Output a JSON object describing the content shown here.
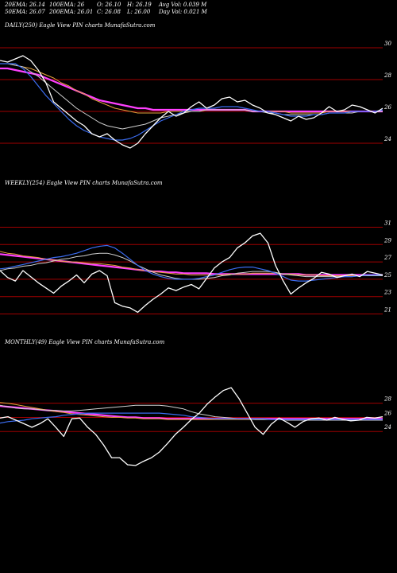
{
  "header": {
    "row1": [
      "20EMA: 26.14",
      "100EMA: 26",
      "O: 26.10",
      "H: 26.19",
      "Avg Vol: 0.039 M"
    ],
    "row2": [
      "50EMA: 26.07",
      "200EMA: 26.01",
      "C: 26.08",
      "L: 26.00",
      "Day Vol: 0.021 M"
    ]
  },
  "colors": {
    "price": "#ffffff",
    "ema20": "#3b6cf0",
    "ema50": "#cfcfcf",
    "ema100": "#e6a33c",
    "ema200": "#ff40ff",
    "hline": "#a00000"
  },
  "chart_data": [
    {
      "type": "line",
      "title": "DAILY(250) Eagle View PIN charts MunafaSutra.com",
      "ylim": [
        23,
        31
      ],
      "yticks": [
        "30",
        "28",
        "26",
        "24"
      ],
      "tickValues": [
        30,
        28,
        26,
        24
      ],
      "series": [
        {
          "key": "price",
          "values": [
            29.2,
            29.1,
            29.3,
            29.5,
            29.2,
            28.6,
            27.8,
            26.6,
            26.2,
            25.8,
            25.4,
            25.1,
            24.6,
            24.4,
            24.6,
            24.2,
            23.9,
            23.7,
            24.0,
            24.6,
            25.1,
            25.6,
            26.0,
            25.7,
            25.9,
            26.3,
            26.6,
            26.2,
            26.4,
            26.8,
            26.9,
            26.6,
            26.7,
            26.4,
            26.2,
            25.9,
            25.8,
            25.6,
            25.4,
            25.7,
            25.5,
            25.6,
            25.9,
            26.3,
            26.0,
            26.1,
            26.4,
            26.3,
            26.1,
            25.9,
            26.2
          ]
        },
        {
          "key": "ema20",
          "values": [
            29.0,
            29.0,
            29.0,
            28.7,
            28.2,
            27.6,
            27.0,
            26.5,
            26.0,
            25.5,
            25.1,
            24.8,
            24.6,
            24.4,
            24.3,
            24.2,
            24.2,
            24.3,
            24.5,
            24.8,
            25.1,
            25.4,
            25.6,
            25.8,
            26.0,
            26.1,
            26.2,
            26.2,
            26.2,
            26.3,
            26.3,
            26.3,
            26.2,
            26.1,
            26.0,
            26.0,
            25.9,
            25.8,
            25.7,
            25.7,
            25.7,
            25.8,
            25.8,
            25.9,
            25.9,
            25.9,
            26.0,
            26.0,
            26.0,
            26.0,
            26.1
          ]
        },
        {
          "key": "ema50",
          "values": [
            29.0,
            29.0,
            28.9,
            28.8,
            28.5,
            28.2,
            27.8,
            27.4,
            27.0,
            26.6,
            26.2,
            25.9,
            25.6,
            25.3,
            25.1,
            25.0,
            24.9,
            25.0,
            25.1,
            25.2,
            25.4,
            25.6,
            25.7,
            25.8,
            25.9,
            26.0,
            26.0,
            26.1,
            26.1,
            26.1,
            26.1,
            26.1,
            26.1,
            26.0,
            26.0,
            25.9,
            25.9,
            25.8,
            25.8,
            25.8,
            25.8,
            25.8,
            25.8,
            25.9,
            25.9,
            25.9,
            25.9,
            26.0,
            26.0,
            26.0,
            26.0
          ]
        },
        {
          "key": "ema100",
          "values": [
            29.0,
            29.0,
            28.9,
            28.8,
            28.7,
            28.5,
            28.3,
            28.1,
            27.8,
            27.6,
            27.3,
            27.1,
            26.8,
            26.6,
            26.4,
            26.2,
            26.1,
            26.0,
            25.9,
            25.9,
            25.9,
            25.9,
            26.0,
            26.0,
            26.0,
            26.0,
            26.0,
            26.1,
            26.1,
            26.1,
            26.1,
            26.1,
            26.1,
            26.0,
            26.0,
            26.0,
            26.0,
            26.0,
            25.9,
            25.9,
            25.9,
            25.9,
            25.9,
            26.0,
            26.0,
            26.0,
            26.0,
            26.0,
            26.0,
            26.0,
            26.0
          ]
        },
        {
          "key": "ema200",
          "values": [
            28.7,
            28.7,
            28.6,
            28.5,
            28.4,
            28.3,
            28.1,
            27.9,
            27.7,
            27.5,
            27.3,
            27.1,
            26.9,
            26.7,
            26.6,
            26.5,
            26.4,
            26.3,
            26.2,
            26.2,
            26.1,
            26.1,
            26.1,
            26.1,
            26.1,
            26.1,
            26.1,
            26.1,
            26.1,
            26.1,
            26.1,
            26.1,
            26.1,
            26.0,
            26.0,
            26.0,
            26.0,
            26.0,
            26.0,
            26.0,
            26.0,
            26.0,
            26.0,
            26.0,
            26.0,
            26.0,
            26.0,
            26.0,
            26.0,
            26.0,
            26.0
          ]
        }
      ]
    },
    {
      "type": "line",
      "title": "WEEKLY(254) Eagle View PIN charts MunafaSutra.com",
      "ylim": [
        20.5,
        31.5
      ],
      "yticks": [
        "31",
        "29",
        "27",
        "25",
        "23",
        "21"
      ],
      "tickValues": [
        31,
        29,
        27,
        25,
        23,
        21
      ],
      "series": [
        {
          "key": "price",
          "values": [
            26.0,
            25.2,
            24.8,
            26.0,
            25.3,
            24.6,
            24.0,
            23.4,
            24.2,
            24.8,
            25.5,
            24.6,
            25.6,
            26.0,
            25.4,
            22.3,
            21.9,
            21.7,
            21.2,
            22.0,
            22.7,
            23.3,
            24.0,
            23.7,
            24.1,
            24.4,
            23.9,
            25.1,
            26.3,
            27.0,
            27.5,
            28.6,
            29.2,
            30.0,
            30.3,
            29.2,
            26.6,
            24.8,
            23.3,
            24.0,
            24.6,
            25.1,
            25.8,
            25.6,
            25.2,
            25.4,
            25.6,
            25.3,
            25.9,
            25.7,
            25.5
          ]
        },
        {
          "key": "ema20",
          "values": [
            26.2,
            26.3,
            26.5,
            26.7,
            26.9,
            27.1,
            27.3,
            27.5,
            27.6,
            27.8,
            28.0,
            28.3,
            28.6,
            28.8,
            28.9,
            28.6,
            28.0,
            27.3,
            26.6,
            26.0,
            25.6,
            25.3,
            25.1,
            25.0,
            25.0,
            25.0,
            25.1,
            25.3,
            25.5,
            25.8,
            26.1,
            26.3,
            26.4,
            26.4,
            26.2,
            26.0,
            25.7,
            25.3,
            24.9,
            24.8,
            24.8,
            24.9,
            25.0,
            25.1,
            25.2,
            25.3,
            25.3,
            25.4,
            25.5,
            25.5,
            25.5
          ]
        },
        {
          "key": "ema50",
          "values": [
            26.0,
            26.2,
            26.3,
            26.5,
            26.6,
            26.8,
            26.9,
            27.1,
            27.3,
            27.4,
            27.6,
            27.7,
            27.9,
            28.0,
            28.0,
            27.8,
            27.5,
            27.1,
            26.6,
            26.2,
            25.8,
            25.5,
            25.3,
            25.1,
            25.0,
            25.0,
            25.0,
            25.1,
            25.2,
            25.4,
            25.5,
            25.7,
            25.8,
            25.9,
            25.9,
            25.9,
            25.8,
            25.6,
            25.5,
            25.4,
            25.3,
            25.3,
            25.3,
            25.3,
            25.3,
            25.3,
            25.3,
            25.4,
            25.4,
            25.4,
            25.4
          ]
        },
        {
          "key": "ema100",
          "values": [
            28.2,
            28.0,
            27.9,
            27.7,
            27.6,
            27.5,
            27.3,
            27.2,
            27.1,
            27.0,
            27.0,
            26.9,
            26.8,
            26.8,
            26.7,
            26.6,
            26.4,
            26.3,
            26.1,
            26.0,
            25.9,
            25.8,
            25.7,
            25.6,
            25.6,
            25.5,
            25.5,
            25.5,
            25.5,
            25.5,
            25.6,
            25.6,
            25.6,
            25.7,
            25.7,
            25.7,
            25.7,
            25.6,
            25.6,
            25.5,
            25.5,
            25.5,
            25.4,
            25.4,
            25.4,
            25.4,
            25.4,
            25.4,
            25.4,
            25.4,
            25.4
          ]
        },
        {
          "key": "ema200",
          "values": [
            27.9,
            27.8,
            27.7,
            27.6,
            27.5,
            27.4,
            27.3,
            27.2,
            27.1,
            27.0,
            26.9,
            26.8,
            26.7,
            26.6,
            26.5,
            26.4,
            26.3,
            26.2,
            26.1,
            26.0,
            25.9,
            25.9,
            25.8,
            25.8,
            25.7,
            25.7,
            25.7,
            25.7,
            25.6,
            25.6,
            25.6,
            25.6,
            25.6,
            25.6,
            25.6,
            25.6,
            25.6,
            25.6,
            25.6,
            25.6,
            25.5,
            25.5,
            25.5,
            25.5,
            25.5,
            25.5,
            25.5,
            25.5,
            25.5,
            25.5,
            25.5
          ]
        }
      ]
    },
    {
      "type": "line",
      "title": "MONTHLY(49) Eagle View PIN charts MunafaSutra.com",
      "ylim": [
        17.5,
        31
      ],
      "yticks": [
        "28",
        "26",
        "24"
      ],
      "tickValues": [
        28,
        26,
        24
      ],
      "series": [
        {
          "key": "price",
          "values": [
            25.9,
            26.1,
            25.6,
            25.1,
            24.6,
            25.1,
            25.8,
            24.6,
            23.3,
            25.8,
            25.9,
            24.6,
            23.6,
            22.1,
            20.3,
            20.3,
            19.3,
            19.2,
            19.8,
            20.3,
            21.1,
            22.3,
            23.6,
            24.6,
            25.7,
            26.6,
            27.9,
            28.9,
            29.8,
            30.2,
            28.6,
            26.6,
            24.6,
            23.6,
            25.0,
            25.9,
            25.3,
            24.6,
            25.4,
            25.8,
            25.9,
            25.6,
            26.0,
            25.7,
            25.5,
            25.6,
            26.0,
            25.9,
            26.1
          ]
        },
        {
          "key": "ema20",
          "values": [
            25.2,
            25.4,
            25.5,
            25.6,
            25.8,
            25.9,
            26.0,
            26.1,
            26.3,
            26.4,
            26.5,
            26.6,
            26.6,
            26.6,
            26.6,
            26.6,
            26.6,
            26.6,
            26.6,
            26.6,
            26.6,
            26.5,
            26.4,
            26.3,
            26.1,
            26.0,
            25.9,
            25.8,
            25.8,
            25.8,
            25.8,
            25.8,
            25.8,
            25.8,
            25.7,
            25.7,
            25.7,
            25.7,
            25.7,
            25.7,
            25.7,
            25.7,
            25.7,
            25.7,
            25.7,
            25.7,
            25.7,
            25.7,
            25.7
          ]
        },
        {
          "key": "ema50",
          "values": [
            27.7,
            27.5,
            27.3,
            27.2,
            27.2,
            27.1,
            27.0,
            27.0,
            26.9,
            26.9,
            27.0,
            27.1,
            27.2,
            27.3,
            27.4,
            27.5,
            27.6,
            27.7,
            27.7,
            27.7,
            27.7,
            27.6,
            27.4,
            27.2,
            26.8,
            26.5,
            26.3,
            26.1,
            26.0,
            25.9,
            25.8,
            25.8,
            25.7,
            25.7,
            25.7,
            25.7,
            25.6,
            25.6,
            25.6,
            25.6,
            25.6,
            25.6,
            25.6,
            25.6,
            25.6,
            25.6,
            25.6,
            25.6,
            25.6
          ]
        },
        {
          "key": "ema100",
          "values": [
            28.1,
            28.0,
            27.8,
            27.6,
            27.4,
            27.2,
            27.0,
            26.8,
            26.7,
            26.5,
            26.4,
            26.3,
            26.2,
            26.1,
            26.0,
            26.0,
            25.9,
            25.9,
            25.8,
            25.8,
            25.8,
            25.7,
            25.7,
            25.7,
            25.7,
            25.7,
            25.7,
            25.7,
            25.7,
            25.7,
            25.7,
            25.7,
            25.7,
            25.7,
            25.7,
            25.7,
            25.7,
            25.7,
            25.7,
            25.7,
            25.7,
            25.7,
            25.7,
            25.7,
            25.7,
            25.7,
            25.7,
            25.7,
            25.7
          ]
        },
        {
          "key": "ema200",
          "values": [
            27.6,
            27.5,
            27.4,
            27.3,
            27.2,
            27.1,
            27.0,
            26.9,
            26.8,
            26.7,
            26.6,
            26.5,
            26.4,
            26.3,
            26.2,
            26.1,
            26.0,
            26.0,
            25.9,
            25.9,
            25.9,
            25.8,
            25.8,
            25.8,
            25.8,
            25.8,
            25.8,
            25.8,
            25.8,
            25.8,
            25.8,
            25.8,
            25.8,
            25.8,
            25.8,
            25.8,
            25.8,
            25.8,
            25.8,
            25.8,
            25.8,
            25.8,
            25.8,
            25.8,
            25.8,
            25.8,
            25.8,
            25.8,
            25.8
          ]
        }
      ]
    }
  ]
}
